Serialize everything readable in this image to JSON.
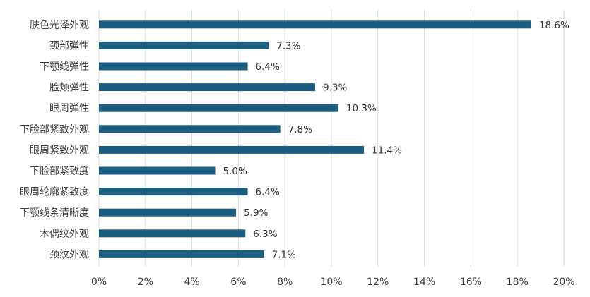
{
  "chart_data": {
    "type": "bar",
    "orientation": "horizontal",
    "categories": [
      "肤色光泽外观",
      "颈部弹性",
      "下颚线弹性",
      "脸颊弹性",
      "眼周弹性",
      "下脸部紧致外观",
      "眼周紧致外观",
      "下脸部紧致度",
      "眼周轮廓紧致度",
      "下颚线条清晰度",
      "木偶纹外观",
      "颈纹外观"
    ],
    "values": [
      18.6,
      7.3,
      6.4,
      9.3,
      10.3,
      7.8,
      11.4,
      5.0,
      6.4,
      5.9,
      6.3,
      7.1
    ],
    "data_labels": [
      "18.6%",
      "7.3%",
      "6.4%",
      "9.3%",
      "10.3%",
      "7.8%",
      "11.4%",
      "5.0%",
      "6.4%",
      "5.9%",
      "6.3%",
      "7.1%"
    ],
    "xlim": [
      0,
      20
    ],
    "xticks": [
      0,
      2,
      4,
      6,
      8,
      10,
      12,
      14,
      16,
      18,
      20
    ],
    "xtick_labels": [
      "0%",
      "2%",
      "4%",
      "6%",
      "8%",
      "10%",
      "12%",
      "14%",
      "16%",
      "18%",
      "20%"
    ],
    "bar_color": "#1b5e80",
    "grid": "vertical",
    "title": "",
    "xlabel": "",
    "ylabel": ""
  }
}
